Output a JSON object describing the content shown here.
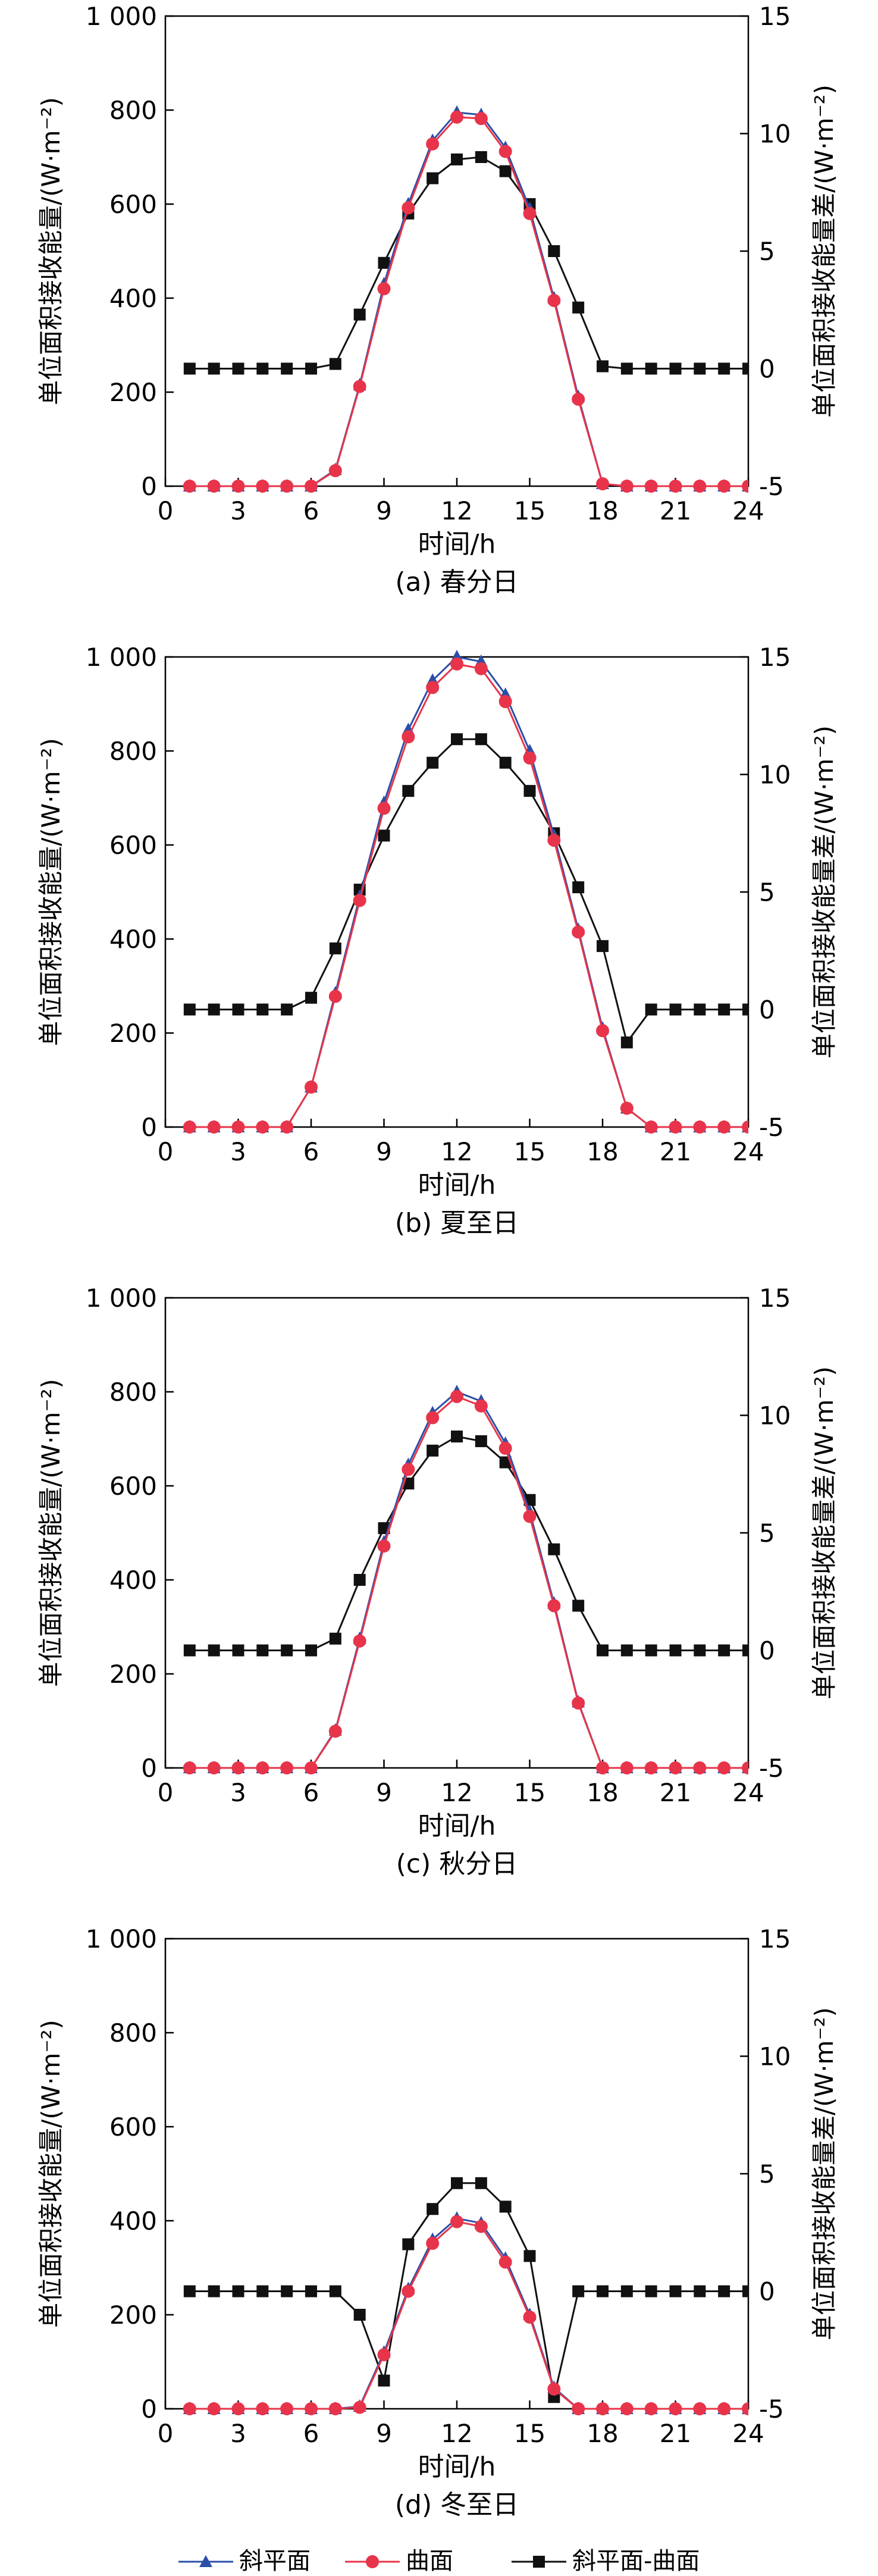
{
  "x_axis": {
    "label": "时间/h",
    "ticks": [
      0,
      3,
      6,
      9,
      12,
      15,
      18,
      21,
      24
    ],
    "range": [
      0,
      24
    ]
  },
  "y_left": {
    "label": "单位面积接收能量/(W·m⁻²)",
    "ticks": [
      "0",
      "200",
      "400",
      "600",
      "800",
      "1 000"
    ],
    "range": [
      0,
      1000
    ]
  },
  "y_right": {
    "label": "单位面积接收能量差/(W·m⁻²)",
    "ticks": [
      -5,
      0,
      5,
      10,
      15
    ],
    "range": [
      -5,
      15
    ]
  },
  "legend": {
    "position": "bottom-center",
    "items": [
      {
        "label": "斜平面",
        "color": "#2B4FA8",
        "marker": "triangle"
      },
      {
        "label": "曲面",
        "color": "#E8344A",
        "marker": "circle"
      },
      {
        "label": "斜平面-曲面",
        "color": "#111111",
        "marker": "square"
      }
    ]
  },
  "chart_data": [
    {
      "type": "line",
      "caption": "(a) 春分日",
      "x": [
        1,
        2,
        3,
        4,
        5,
        6,
        7,
        8,
        9,
        10,
        11,
        12,
        13,
        14,
        15,
        16,
        17,
        18,
        19,
        20,
        21,
        22,
        23,
        24
      ],
      "series": [
        {
          "name": "斜平面",
          "axis": "left",
          "values": [
            0,
            0,
            0,
            0,
            0,
            0,
            35,
            215,
            430,
            600,
            735,
            795,
            790,
            720,
            590,
            400,
            190,
            5,
            0,
            0,
            0,
            0,
            0,
            0
          ]
        },
        {
          "name": "曲面",
          "axis": "left",
          "values": [
            0,
            0,
            0,
            0,
            0,
            0,
            33,
            212,
            420,
            592,
            728,
            785,
            782,
            712,
            580,
            395,
            185,
            5,
            0,
            0,
            0,
            0,
            0,
            0
          ]
        },
        {
          "name": "斜平面-曲面",
          "axis": "right",
          "values": [
            0,
            0,
            0,
            0,
            0,
            0,
            0.2,
            2.3,
            4.5,
            6.6,
            8.1,
            8.9,
            9.0,
            8.4,
            7.0,
            5.0,
            2.6,
            0.1,
            0,
            0,
            0,
            0,
            0,
            0
          ]
        }
      ]
    },
    {
      "type": "line",
      "caption": "(b) 夏至日",
      "x": [
        1,
        2,
        3,
        4,
        5,
        6,
        7,
        8,
        9,
        10,
        11,
        12,
        13,
        14,
        15,
        16,
        17,
        18,
        19,
        20,
        21,
        22,
        23,
        24
      ],
      "series": [
        {
          "name": "斜平面",
          "axis": "left",
          "values": [
            0,
            0,
            0,
            0,
            0,
            85,
            285,
            490,
            690,
            845,
            950,
            1000,
            990,
            920,
            800,
            620,
            420,
            210,
            40,
            0,
            0,
            0,
            0,
            0
          ]
        },
        {
          "name": "曲面",
          "axis": "left",
          "values": [
            0,
            0,
            0,
            0,
            0,
            85,
            278,
            482,
            678,
            830,
            935,
            985,
            975,
            905,
            785,
            610,
            415,
            205,
            40,
            0,
            0,
            0,
            0,
            0
          ]
        },
        {
          "name": "斜平面-曲面",
          "axis": "right",
          "values": [
            0,
            0,
            0,
            0,
            0,
            0.5,
            2.6,
            5.1,
            7.4,
            9.3,
            10.5,
            11.5,
            11.5,
            10.5,
            9.3,
            7.5,
            5.2,
            2.7,
            -1.4,
            0,
            0,
            0,
            0,
            0
          ]
        }
      ]
    },
    {
      "type": "line",
      "caption": "(c) 秋分日",
      "x": [
        1,
        2,
        3,
        4,
        5,
        6,
        7,
        8,
        9,
        10,
        11,
        12,
        13,
        14,
        15,
        16,
        17,
        18,
        19,
        20,
        21,
        22,
        23,
        24
      ],
      "series": [
        {
          "name": "斜平面",
          "axis": "left",
          "values": [
            0,
            0,
            0,
            0,
            0,
            0,
            80,
            275,
            480,
            645,
            755,
            800,
            780,
            690,
            545,
            350,
            140,
            0,
            0,
            0,
            0,
            0,
            0,
            0
          ]
        },
        {
          "name": "曲面",
          "axis": "left",
          "values": [
            0,
            0,
            0,
            0,
            0,
            0,
            78,
            270,
            472,
            635,
            745,
            790,
            770,
            680,
            535,
            345,
            138,
            0,
            0,
            0,
            0,
            0,
            0,
            0
          ]
        },
        {
          "name": "斜平面-曲面",
          "axis": "right",
          "values": [
            0,
            0,
            0,
            0,
            0,
            0,
            0.5,
            3.0,
            5.2,
            7.1,
            8.5,
            9.1,
            8.9,
            8.0,
            6.4,
            4.3,
            1.9,
            0,
            0,
            0,
            0,
            0,
            0,
            0
          ]
        }
      ]
    },
    {
      "type": "line",
      "caption": "(d) 冬至日",
      "x": [
        1,
        2,
        3,
        4,
        5,
        6,
        7,
        8,
        9,
        10,
        11,
        12,
        13,
        14,
        15,
        16,
        17,
        18,
        19,
        20,
        21,
        22,
        23,
        24
      ],
      "series": [
        {
          "name": "斜平面",
          "axis": "left",
          "values": [
            0,
            0,
            0,
            0,
            0,
            0,
            0,
            5,
            120,
            255,
            360,
            405,
            395,
            320,
            200,
            45,
            0,
            0,
            0,
            0,
            0,
            0,
            0,
            0
          ]
        },
        {
          "name": "曲面",
          "axis": "left",
          "values": [
            0,
            0,
            0,
            0,
            0,
            0,
            0,
            3,
            115,
            250,
            352,
            398,
            388,
            312,
            195,
            42,
            0,
            0,
            0,
            0,
            0,
            0,
            0,
            0
          ]
        },
        {
          "name": "斜平面-曲面",
          "axis": "right",
          "values": [
            0,
            0,
            0,
            0,
            0,
            0,
            0,
            -1.0,
            -3.8,
            2.0,
            3.5,
            4.6,
            4.6,
            3.6,
            1.5,
            -4.5,
            0,
            0,
            0,
            0,
            0,
            0,
            0,
            0
          ]
        }
      ]
    }
  ]
}
